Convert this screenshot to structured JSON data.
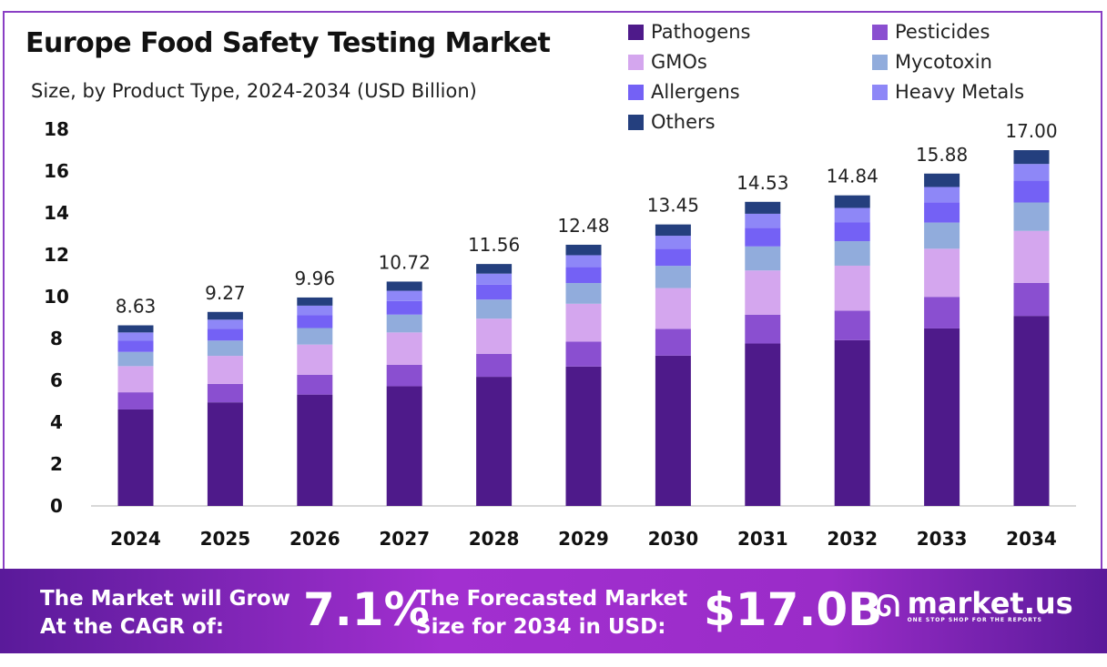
{
  "chart_data": {
    "type": "bar",
    "stacked": true,
    "title": "Europe Food Safety Testing Market",
    "subtitle": "Size, by Product Type, 2024-2034 (USD Billion)",
    "categories": [
      "2024",
      "2025",
      "2026",
      "2027",
      "2028",
      "2029",
      "2030",
      "2031",
      "2032",
      "2033",
      "2034"
    ],
    "totals": [
      "8.63",
      "9.27",
      "9.96",
      "10.72",
      "11.56",
      "12.48",
      "13.45",
      "14.53",
      "14.84",
      "15.88",
      "17.00"
    ],
    "ylim": [
      0,
      18
    ],
    "yticks": [
      "0",
      "2",
      "4",
      "6",
      "8",
      "10",
      "12",
      "14",
      "16",
      "18"
    ],
    "grid": false,
    "legend_placement": "top-right",
    "series": [
      {
        "name": "Pathogens",
        "color": "#4e1a8a",
        "values": [
          4.61,
          4.95,
          5.32,
          5.72,
          6.17,
          6.66,
          7.18,
          7.76,
          7.92,
          8.48,
          9.08
        ]
      },
      {
        "name": "Pesticides",
        "color": "#8a4fd0",
        "values": [
          0.82,
          0.88,
          0.95,
          1.02,
          1.1,
          1.19,
          1.28,
          1.38,
          1.41,
          1.51,
          1.58
        ]
      },
      {
        "name": "GMOs",
        "color": "#d4a6ee",
        "values": [
          1.25,
          1.34,
          1.44,
          1.55,
          1.68,
          1.81,
          1.95,
          2.11,
          2.15,
          2.3,
          2.48
        ]
      },
      {
        "name": "Mycotoxin",
        "color": "#91acdc",
        "values": [
          0.68,
          0.73,
          0.79,
          0.85,
          0.91,
          0.99,
          1.06,
          1.15,
          1.17,
          1.25,
          1.36
        ]
      },
      {
        "name": "Allergens",
        "color": "#7461f5",
        "values": [
          0.53,
          0.57,
          0.61,
          0.65,
          0.71,
          0.76,
          0.82,
          0.89,
          0.91,
          0.97,
          1.04
        ]
      },
      {
        "name": "Heavy Metals",
        "color": "#8e87f7",
        "values": [
          0.4,
          0.43,
          0.46,
          0.49,
          0.53,
          0.57,
          0.62,
          0.67,
          0.68,
          0.73,
          0.8
        ]
      },
      {
        "name": "Others",
        "color": "#243f7e",
        "values": [
          0.34,
          0.37,
          0.39,
          0.44,
          0.46,
          0.5,
          0.54,
          0.57,
          0.6,
          0.64,
          0.66
        ]
      }
    ]
  },
  "banner": {
    "cagr_label_1": "The Market will Grow",
    "cagr_label_2": "At the CAGR of:",
    "cagr_value": "7.1%",
    "forecast_label_1": "The Forecasted Market",
    "forecast_label_2": "Size for 2034 in USD:",
    "forecast_value": "$17.0B",
    "logo_name": "market.us",
    "logo_tagline": "ONE STOP SHOP FOR THE REPORTS"
  }
}
